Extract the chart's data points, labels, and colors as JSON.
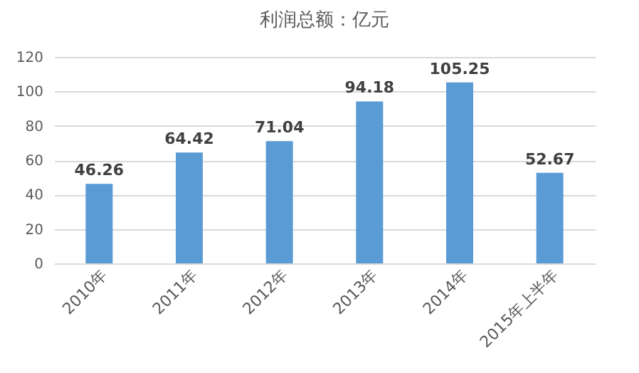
{
  "chart_data": {
    "type": "bar",
    "title": "利润总额：亿元",
    "categories": [
      "2010年",
      "2011年",
      "2012年",
      "2013年",
      "2014年",
      "2015年上半年"
    ],
    "values": [
      46.26,
      64.42,
      71.04,
      94.18,
      105.25,
      52.67
    ],
    "color": "#5b9bd5",
    "ylim": [
      0,
      120
    ],
    "yticks": [
      0,
      20,
      40,
      60,
      80,
      100,
      120
    ],
    "grid": "y",
    "data_labels": true
  }
}
